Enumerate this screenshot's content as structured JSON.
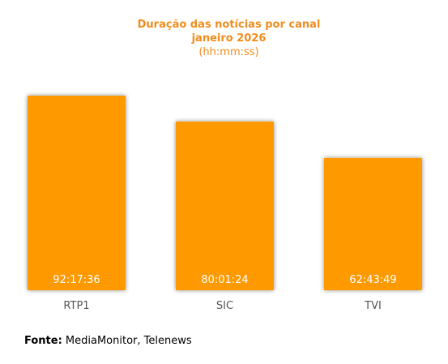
{
  "chart_data": {
    "type": "bar",
    "title": "Duração das notícias por canal",
    "subtitle": "janeiro 2026",
    "unit_label": "(hh:mm:ss)",
    "categories": [
      "RTP1",
      "SIC",
      "TVI"
    ],
    "values": [
      "92:17:36",
      "80:01:24",
      "62:43:49"
    ],
    "values_hours": [
      92.29,
      80.02,
      62.73
    ],
    "bar_color": "#ff9900",
    "label_color": "#ffffff",
    "title_color": "#f28c1c",
    "grid": false,
    "legend": "none"
  },
  "source": {
    "label": "Fonte:",
    "text": "MediaMonitor, Telenews"
  }
}
